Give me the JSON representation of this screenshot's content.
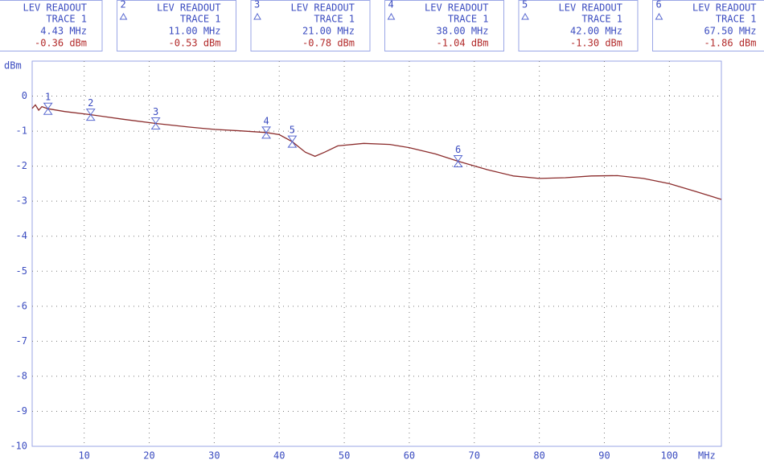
{
  "chart_data": {
    "type": "line",
    "y_label": "dBm",
    "x_unit": "MHz",
    "xlim": [
      2,
      108
    ],
    "xticks": [
      10,
      20,
      30,
      40,
      50,
      60,
      70,
      80,
      90,
      100
    ],
    "ylim": [
      -10,
      1
    ],
    "yticks": [
      0,
      -1,
      -2,
      -3,
      -4,
      -5,
      -6,
      -7,
      -8,
      -9,
      -10
    ],
    "grid": true,
    "color": "#8b2c2c",
    "x": [
      2,
      2.5,
      3,
      3.5,
      4.43,
      7,
      11,
      16,
      21,
      26,
      30,
      34,
      38,
      40,
      42,
      44,
      45.5,
      47,
      49,
      53,
      57,
      60,
      64,
      67.5,
      72,
      76,
      80,
      84,
      88,
      92,
      96,
      100,
      104,
      108
    ],
    "values": [
      -0.35,
      -0.25,
      -0.4,
      -0.3,
      -0.36,
      -0.44,
      -0.53,
      -0.66,
      -0.78,
      -0.88,
      -0.95,
      -0.99,
      -1.04,
      -1.1,
      -1.3,
      -1.6,
      -1.72,
      -1.6,
      -1.42,
      -1.35,
      -1.38,
      -1.47,
      -1.65,
      -1.86,
      -2.1,
      -2.28,
      -2.35,
      -2.33,
      -2.28,
      -2.27,
      -2.35,
      -2.5,
      -2.72,
      -2.95
    ],
    "markers": {
      "readout": "LEV READOUT",
      "trace": "TRACE 1",
      "numbers": [
        1,
        2,
        3,
        4,
        5,
        6
      ],
      "x": [
        4.43,
        11,
        21,
        38,
        42,
        67.5
      ],
      "x_labels": [
        "4.43 MHz",
        "11.00 MHz",
        "21.00 MHz",
        "38.00 MHz",
        "42.00 MHz",
        "67.50 MHz"
      ],
      "values": [
        -0.36,
        -0.53,
        -0.78,
        -1.04,
        -1.3,
        -1.86
      ],
      "value_labels": [
        "-0.36 dBm",
        "-0.53 dBm",
        "-0.78 dBm",
        "-1.04 dBm",
        "-1.30 dBm",
        "-1.86 dBm"
      ]
    }
  }
}
